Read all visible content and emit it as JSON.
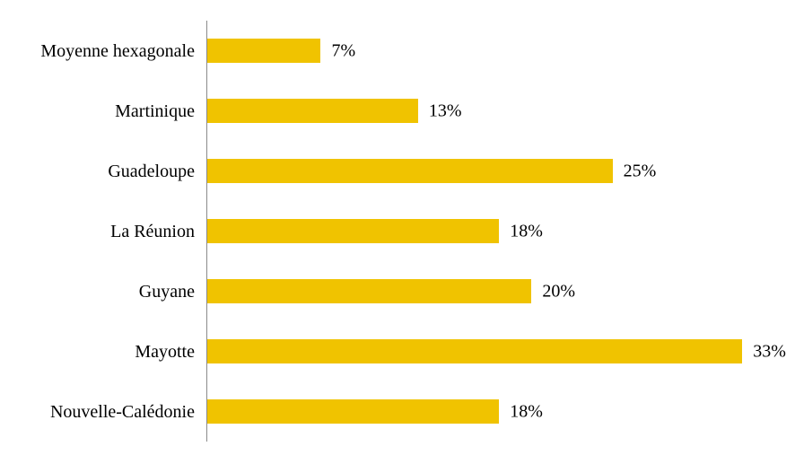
{
  "chart_data": {
    "type": "bar",
    "orientation": "horizontal",
    "title": "",
    "xlabel": "",
    "ylabel": "",
    "categories": [
      "Moyenne hexagonale",
      "Martinique",
      "Guadeloupe",
      "La Réunion",
      "Guyane",
      "Mayotte",
      "Nouvelle-Calédonie"
    ],
    "values": [
      7,
      13,
      25,
      18,
      20,
      33,
      18
    ],
    "value_labels": [
      "7%",
      "13%",
      "25%",
      "18%",
      "20%",
      "33%",
      "18%"
    ],
    "xlim": [
      0,
      36.2
    ],
    "grid": false,
    "legend": false,
    "data_labels_position": "outside-end",
    "bar_color": "#F0C300",
    "axis_line_color": "#8A8A8A",
    "text_color": "#000000",
    "background_color": "#FFFFFF"
  }
}
